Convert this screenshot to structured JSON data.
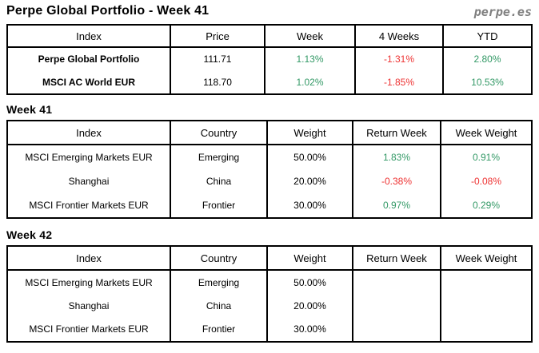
{
  "page": {
    "title": "Perpe Global Portfolio - Week 41",
    "logo": "perpe.es"
  },
  "colors": {
    "positive": "#339966",
    "negative": "#EE3333",
    "logo_gray": "#7F7F7F",
    "border": "#000000"
  },
  "summary_table": {
    "headers": [
      "Index",
      "Price",
      "Week",
      "4 Weeks",
      "YTD"
    ],
    "rows": [
      {
        "index": "Perpe Global Portfolio",
        "price": "111.71",
        "week": "1.13%",
        "four_weeks": "-1.31%",
        "ytd": "2.80%"
      },
      {
        "index": "MSCI AC World EUR",
        "price": "118.70",
        "week": "1.02%",
        "four_weeks": "-1.85%",
        "ytd": "10.53%"
      }
    ]
  },
  "week41": {
    "heading": "Week 41",
    "headers": [
      "Index",
      "Country",
      "Weight",
      "Return Week",
      "Week Weight"
    ],
    "rows": [
      {
        "index": "MSCI Emerging Markets EUR",
        "country": "Emerging",
        "weight": "50.00%",
        "return_week": "1.83%",
        "week_weight": "0.91%"
      },
      {
        "index": "Shanghai",
        "country": "China",
        "weight": "20.00%",
        "return_week": "-0.38%",
        "week_weight": "-0.08%"
      },
      {
        "index": "MSCI Frontier Markets EUR",
        "country": "Frontier",
        "weight": "30.00%",
        "return_week": "0.97%",
        "week_weight": "0.29%"
      }
    ]
  },
  "week42": {
    "heading": "Week 42",
    "headers": [
      "Index",
      "Country",
      "Weight",
      "Return Week",
      "Week Weight"
    ],
    "rows": [
      {
        "index": "MSCI Emerging Markets EUR",
        "country": "Emerging",
        "weight": "50.00%",
        "return_week": "",
        "week_weight": ""
      },
      {
        "index": "Shanghai",
        "country": "China",
        "weight": "20.00%",
        "return_week": "",
        "week_weight": ""
      },
      {
        "index": "MSCI Frontier Markets EUR",
        "country": "Frontier",
        "weight": "30.00%",
        "return_week": "",
        "week_weight": ""
      }
    ]
  }
}
